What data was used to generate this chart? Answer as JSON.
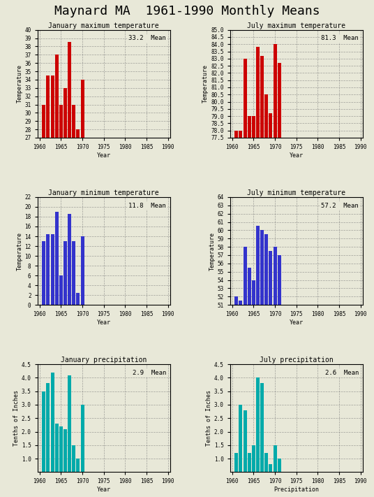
{
  "title": "Maynard MA  1961-1990 Monthly Means",
  "title_fontsize": 13,
  "background_color": "#e8e8d8",
  "subplots": [
    {
      "title": "January maximum temperature",
      "ylabel": "Temperature",
      "xlabel": "Year",
      "mean_label": "33.2  Mean",
      "bar_color": "#cc0000",
      "years": [
        1961,
        1962,
        1963,
        1964,
        1965,
        1966,
        1967,
        1968,
        1969,
        1970
      ],
      "values": [
        31.0,
        34.5,
        34.5,
        37.0,
        31.0,
        33.0,
        38.5,
        31.0,
        28.0,
        34.0
      ],
      "ylim": [
        27,
        40
      ],
      "yticks": [
        27,
        28,
        29,
        30,
        31,
        32,
        33,
        34,
        35,
        36,
        37,
        38,
        39,
        40
      ],
      "xlim": [
        1960,
        1991
      ],
      "xticks": [
        1960,
        1965,
        1970,
        1975,
        1980,
        1985,
        1990
      ]
    },
    {
      "title": "July maximum temperature",
      "ylabel": "Temperature",
      "xlabel": "Year",
      "mean_label": "81.3  Mean",
      "bar_color": "#cc0000",
      "years": [
        1961,
        1962,
        1963,
        1964,
        1965,
        1966,
        1967,
        1968,
        1969,
        1970,
        1971
      ],
      "values": [
        78.0,
        78.0,
        83.0,
        79.0,
        79.0,
        83.8,
        83.2,
        80.5,
        79.2,
        84.0,
        82.7
      ],
      "ylim": [
        77.5,
        85
      ],
      "yticks": [
        77.5,
        78.0,
        78.5,
        79.0,
        79.5,
        80.0,
        80.5,
        81.0,
        81.5,
        82.0,
        82.5,
        83.0,
        83.5,
        84.0,
        84.5,
        85.0
      ],
      "xlim": [
        1960,
        1991
      ],
      "xticks": [
        1960,
        1965,
        1970,
        1975,
        1980,
        1985,
        1990
      ]
    },
    {
      "title": "January minimum temperature",
      "ylabel": "Temperature",
      "xlabel": "Year",
      "mean_label": "11.8  Mean",
      "bar_color": "#3333cc",
      "years": [
        1961,
        1962,
        1963,
        1964,
        1965,
        1966,
        1967,
        1968,
        1969,
        1970
      ],
      "values": [
        13.0,
        14.5,
        14.5,
        19.0,
        6.0,
        13.0,
        18.5,
        13.0,
        2.5,
        14.0
      ],
      "ylim": [
        0,
        22
      ],
      "yticks": [
        0,
        2,
        4,
        6,
        8,
        10,
        12,
        14,
        16,
        18,
        20,
        22
      ],
      "xlim": [
        1960,
        1991
      ],
      "xticks": [
        1960,
        1965,
        1970,
        1975,
        1980,
        1985,
        1990
      ]
    },
    {
      "title": "July minimum temperature",
      "ylabel": "Temperature",
      "xlabel": "Year",
      "mean_label": "57.2  Mean",
      "bar_color": "#3333cc",
      "years": [
        1961,
        1962,
        1963,
        1964,
        1965,
        1966,
        1967,
        1968,
        1969,
        1970,
        1971
      ],
      "values": [
        52.0,
        51.5,
        58.0,
        55.5,
        54.0,
        60.5,
        60.0,
        59.5,
        57.5,
        58.0,
        57.0
      ],
      "ylim": [
        51,
        64
      ],
      "yticks": [
        51,
        52,
        53,
        54,
        55,
        56,
        57,
        58,
        59,
        60,
        61,
        62,
        63,
        64
      ],
      "xlim": [
        1960,
        1991
      ],
      "xticks": [
        1960,
        1965,
        1970,
        1975,
        1980,
        1985,
        1990
      ]
    },
    {
      "title": "January precipitation",
      "ylabel": "Tenths of Inches",
      "xlabel": "Year",
      "mean_label": "2.9  Mean",
      "bar_color": "#00aaaa",
      "years": [
        1961,
        1962,
        1963,
        1964,
        1965,
        1966,
        1967,
        1968,
        1969,
        1970
      ],
      "values": [
        3.5,
        3.8,
        4.2,
        2.3,
        2.2,
        2.1,
        4.1,
        1.5,
        1.0,
        3.0
      ],
      "ylim": [
        0.5,
        4.5
      ],
      "yticks": [
        1.0,
        1.5,
        2.0,
        2.5,
        3.0,
        3.5,
        4.0,
        4.5
      ],
      "xlim": [
        1960,
        1991
      ],
      "xticks": [
        1960,
        1965,
        1970,
        1975,
        1980,
        1985,
        1990
      ]
    },
    {
      "title": "July precipitation",
      "ylabel": "Tenths of Inches",
      "xlabel": "Precipitation",
      "mean_label": "2.6  Mean",
      "bar_color": "#00aaaa",
      "years": [
        1961,
        1962,
        1963,
        1964,
        1965,
        1966,
        1967,
        1968,
        1969,
        1970,
        1971
      ],
      "values": [
        1.2,
        3.0,
        2.8,
        1.2,
        1.5,
        4.0,
        3.8,
        1.2,
        0.8,
        1.5,
        1.0
      ],
      "ylim": [
        0.5,
        4.5
      ],
      "yticks": [
        1.0,
        1.5,
        2.0,
        2.5,
        3.0,
        3.5,
        4.0,
        4.5
      ],
      "xlim": [
        1960,
        1991
      ],
      "xticks": [
        1960,
        1965,
        1970,
        1975,
        1980,
        1985,
        1990
      ]
    }
  ]
}
